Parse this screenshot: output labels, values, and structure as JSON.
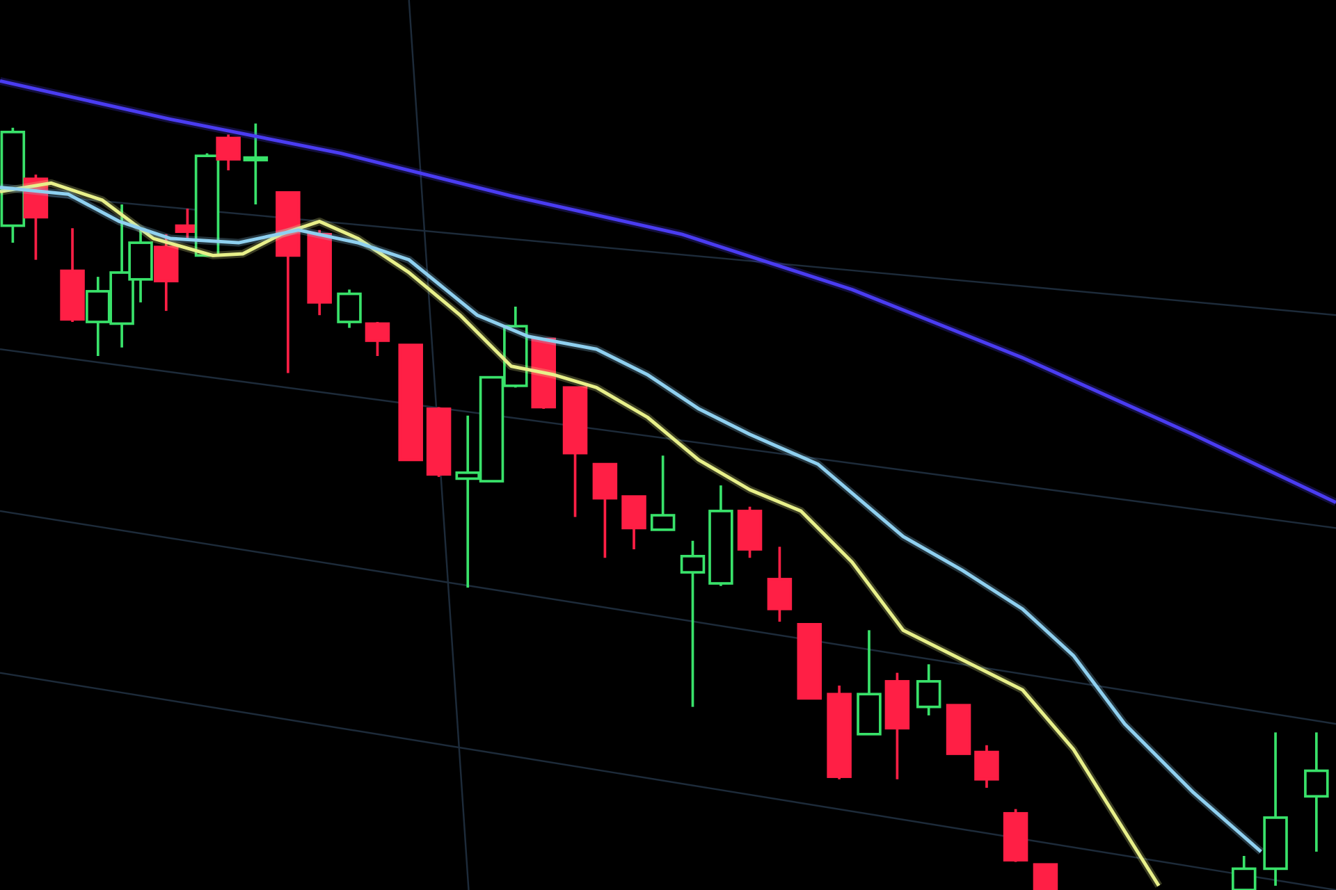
{
  "chart_data": {
    "type": "candlestick",
    "xlim": [
      0,
      1568
    ],
    "ylim": [
      0,
      1045
    ],
    "up_color": "#39e26a",
    "down_color": "#ff1f45",
    "candles": {
      "x": [
        15,
        42,
        85,
        115,
        143,
        165,
        195,
        220,
        243,
        268,
        300,
        338,
        375,
        410,
        443,
        482,
        515,
        549,
        577,
        605,
        638,
        675,
        710,
        744,
        778,
        813,
        846,
        880,
        915,
        950,
        985,
        1020,
        1053,
        1090,
        1125,
        1158,
        1192,
        1227,
        1460,
        1497,
        1545
      ],
      "open": [
        780,
        835,
        727,
        667,
        665,
        717,
        755,
        780,
        745,
        883,
        857,
        819,
        770,
        667,
        665,
        640,
        565,
        483,
        480,
        592,
        647,
        590,
        500,
        462,
        423,
        373,
        360,
        445,
        365,
        312,
        230,
        183,
        245,
        215,
        217,
        162,
        90,
        30,
        0,
        25,
        110
      ],
      "high": [
        895,
        840,
        777,
        720,
        805,
        775,
        770,
        800,
        865,
        887,
        900,
        820,
        775,
        705,
        667,
        640,
        567,
        557,
        602,
        685,
        647,
        590,
        500,
        462,
        510,
        410,
        475,
        450,
        403,
        312,
        240,
        305,
        255,
        265,
        217,
        170,
        95,
        30,
        40,
        185,
        185
      ],
      "low": [
        760,
        740,
        667,
        627,
        637,
        690,
        680,
        765,
        745,
        845,
        805,
        607,
        675,
        660,
        627,
        505,
        485,
        355,
        480,
        590,
        565,
        438,
        390,
        400,
        423,
        215,
        357,
        390,
        315,
        225,
        130,
        183,
        130,
        205,
        160,
        120,
        33,
        0,
        0,
        5,
        45
      ],
      "close": [
        890,
        790,
        670,
        703,
        725,
        760,
        715,
        773,
        862,
        858,
        860,
        745,
        690,
        700,
        645,
        505,
        488,
        490,
        602,
        662,
        567,
        513,
        460,
        425,
        440,
        392,
        445,
        400,
        330,
        225,
        133,
        230,
        190,
        245,
        160,
        130,
        35,
        0,
        25,
        85,
        140
      ]
    },
    "series": [
      {
        "color": "#e8f08a",
        "x": [
          0,
          60,
          120,
          180,
          250,
          285,
          330,
          375,
          420,
          480,
          540,
          600,
          650,
          700,
          760,
          820,
          880,
          940,
          1000,
          1060,
          1130,
          1200,
          1260,
          1310,
          1360
        ],
        "values": [
          820,
          830,
          810,
          765,
          745,
          747,
          770,
          785,
          765,
          725,
          675,
          615,
          605,
          590,
          555,
          505,
          470,
          445,
          385,
          305,
          270,
          235,
          165,
          85,
          5
        ]
      },
      {
        "color": "#8fd0f0",
        "x": [
          0,
          80,
          140,
          200,
          280,
          350,
          420,
          480,
          560,
          620,
          700,
          760,
          820,
          880,
          960,
          1060,
          1130,
          1200,
          1260,
          1320,
          1400,
          1480
        ],
        "values": [
          825,
          817,
          785,
          765,
          760,
          775,
          760,
          740,
          675,
          650,
          635,
          605,
          565,
          535,
          500,
          415,
          375,
          330,
          275,
          195,
          115,
          45
        ]
      },
      {
        "color": "#4a3cf2",
        "x": [
          0,
          200,
          400,
          600,
          800,
          1000,
          1200,
          1400,
          1568
        ],
        "values": [
          950,
          905,
          865,
          815,
          770,
          705,
          625,
          535,
          455
        ]
      }
    ]
  }
}
